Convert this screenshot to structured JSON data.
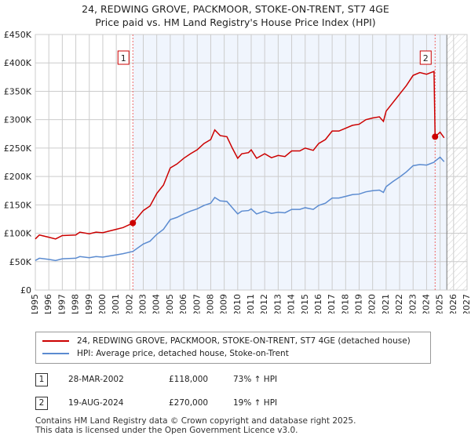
{
  "title": "24, REDWING GROVE, PACKMOOR, STOKE-ON-TRENT, ST7 4GE",
  "subtitle": "Price paid vs. HM Land Registry's House Price Index (HPI)",
  "colors": {
    "property": "#cc0000",
    "hpi": "#5b8bd0",
    "shade": "#f0f5fd"
  },
  "chart_data": {
    "type": "line",
    "xlim": [
      1995,
      2027
    ],
    "ylim": [
      0,
      450000
    ],
    "yticks": [
      0,
      50000,
      100000,
      150000,
      200000,
      250000,
      300000,
      350000,
      400000,
      450000
    ],
    "ytick_labels": [
      "£0",
      "£50K",
      "£100K",
      "£150K",
      "£200K",
      "£250K",
      "£300K",
      "£350K",
      "£400K",
      "£450K"
    ],
    "xticks": [
      "1995",
      "1996",
      "1997",
      "1998",
      "1999",
      "2000",
      "2001",
      "2002",
      "2003",
      "2004",
      "2005",
      "2006",
      "2007",
      "2008",
      "2009",
      "2010",
      "2011",
      "2012",
      "2013",
      "2014",
      "2015",
      "2016",
      "2017",
      "2018",
      "2019",
      "2020",
      "2021",
      "2022",
      "2023",
      "2024",
      "2025",
      "2026",
      "2027"
    ],
    "x": [
      1995,
      1995.3,
      1996,
      1996.5,
      1997,
      1998,
      1998.3,
      1999,
      1999.5,
      2000,
      2000.5,
      2001,
      2001.5,
      2002.23,
      2003,
      2003.5,
      2004,
      2004.5,
      2005,
      2005.5,
      2006,
      2006.5,
      2007,
      2007.5,
      2008,
      2008.3,
      2008.7,
      2009.2,
      2009.6,
      2010,
      2010.3,
      2010.8,
      2011,
      2011.4,
      2012,
      2012.5,
      2013,
      2013.5,
      2014,
      2014.6,
      2015,
      2015.6,
      2016,
      2016.5,
      2017,
      2017.5,
      2018,
      2018.5,
      2019,
      2019.5,
      2020,
      2020.5,
      2020.8,
      2021,
      2021.5,
      2022,
      2022.5,
      2023,
      2023.5,
      2024,
      2024.55,
      2024.63,
      2025,
      2025.3
    ],
    "series": [
      {
        "name": "24, REDWING GROVE, PACKMOOR, STOKE-ON-TRENT, ST7 4GE (detached house)",
        "values": [
          90000,
          97000,
          93000,
          90000,
          96000,
          97000,
          102000,
          99000,
          102000,
          101000,
          104000,
          107000,
          110000,
          118000,
          140000,
          148000,
          170000,
          185000,
          215000,
          222000,
          232000,
          240000,
          247000,
          258000,
          265000,
          282000,
          272000,
          270000,
          250000,
          232000,
          240000,
          242000,
          247000,
          232000,
          240000,
          233000,
          237000,
          235000,
          245000,
          245000,
          250000,
          246000,
          258000,
          265000,
          280000,
          280000,
          285000,
          290000,
          292000,
          300000,
          303000,
          305000,
          297000,
          315000,
          330000,
          345000,
          360000,
          378000,
          383000,
          380000,
          385000,
          270000,
          278000,
          268000
        ]
      },
      {
        "name": "HPI: Average price, detached house, Stoke-on-Trent",
        "values": [
          52000,
          56000,
          54000,
          52000,
          55000,
          56000,
          59000,
          57000,
          59000,
          58000,
          60000,
          62000,
          64000,
          68000,
          81000,
          86000,
          98000,
          107000,
          124000,
          128000,
          134000,
          139000,
          143000,
          149000,
          153000,
          163000,
          157000,
          156000,
          145000,
          134000,
          139000,
          140000,
          143000,
          134000,
          139000,
          135000,
          137000,
          136000,
          142000,
          142000,
          145000,
          142000,
          149000,
          153000,
          162000,
          162000,
          165000,
          168000,
          169000,
          173000,
          175000,
          176000,
          172000,
          182000,
          191000,
          199000,
          208000,
          219000,
          221000,
          220000,
          225000,
          227000,
          234000,
          226000
        ]
      }
    ],
    "annotations": [
      {
        "label": "1",
        "x": 2002.23,
        "y": 118000
      },
      {
        "label": "2",
        "x": 2024.63,
        "y": 270000
      }
    ],
    "shaded_from": 2002.23,
    "forecast_from": 2025.5
  },
  "transactions": [
    {
      "num": "1",
      "date": "28-MAR-2002",
      "price": "£118,000",
      "hpi": "73% ↑ HPI"
    },
    {
      "num": "2",
      "date": "19-AUG-2024",
      "price": "£270,000",
      "hpi": "19% ↑ HPI"
    }
  ],
  "footer": [
    "Contains HM Land Registry data © Crown copyright and database right 2025.",
    "This data is licensed under the Open Government Licence v3.0."
  ]
}
